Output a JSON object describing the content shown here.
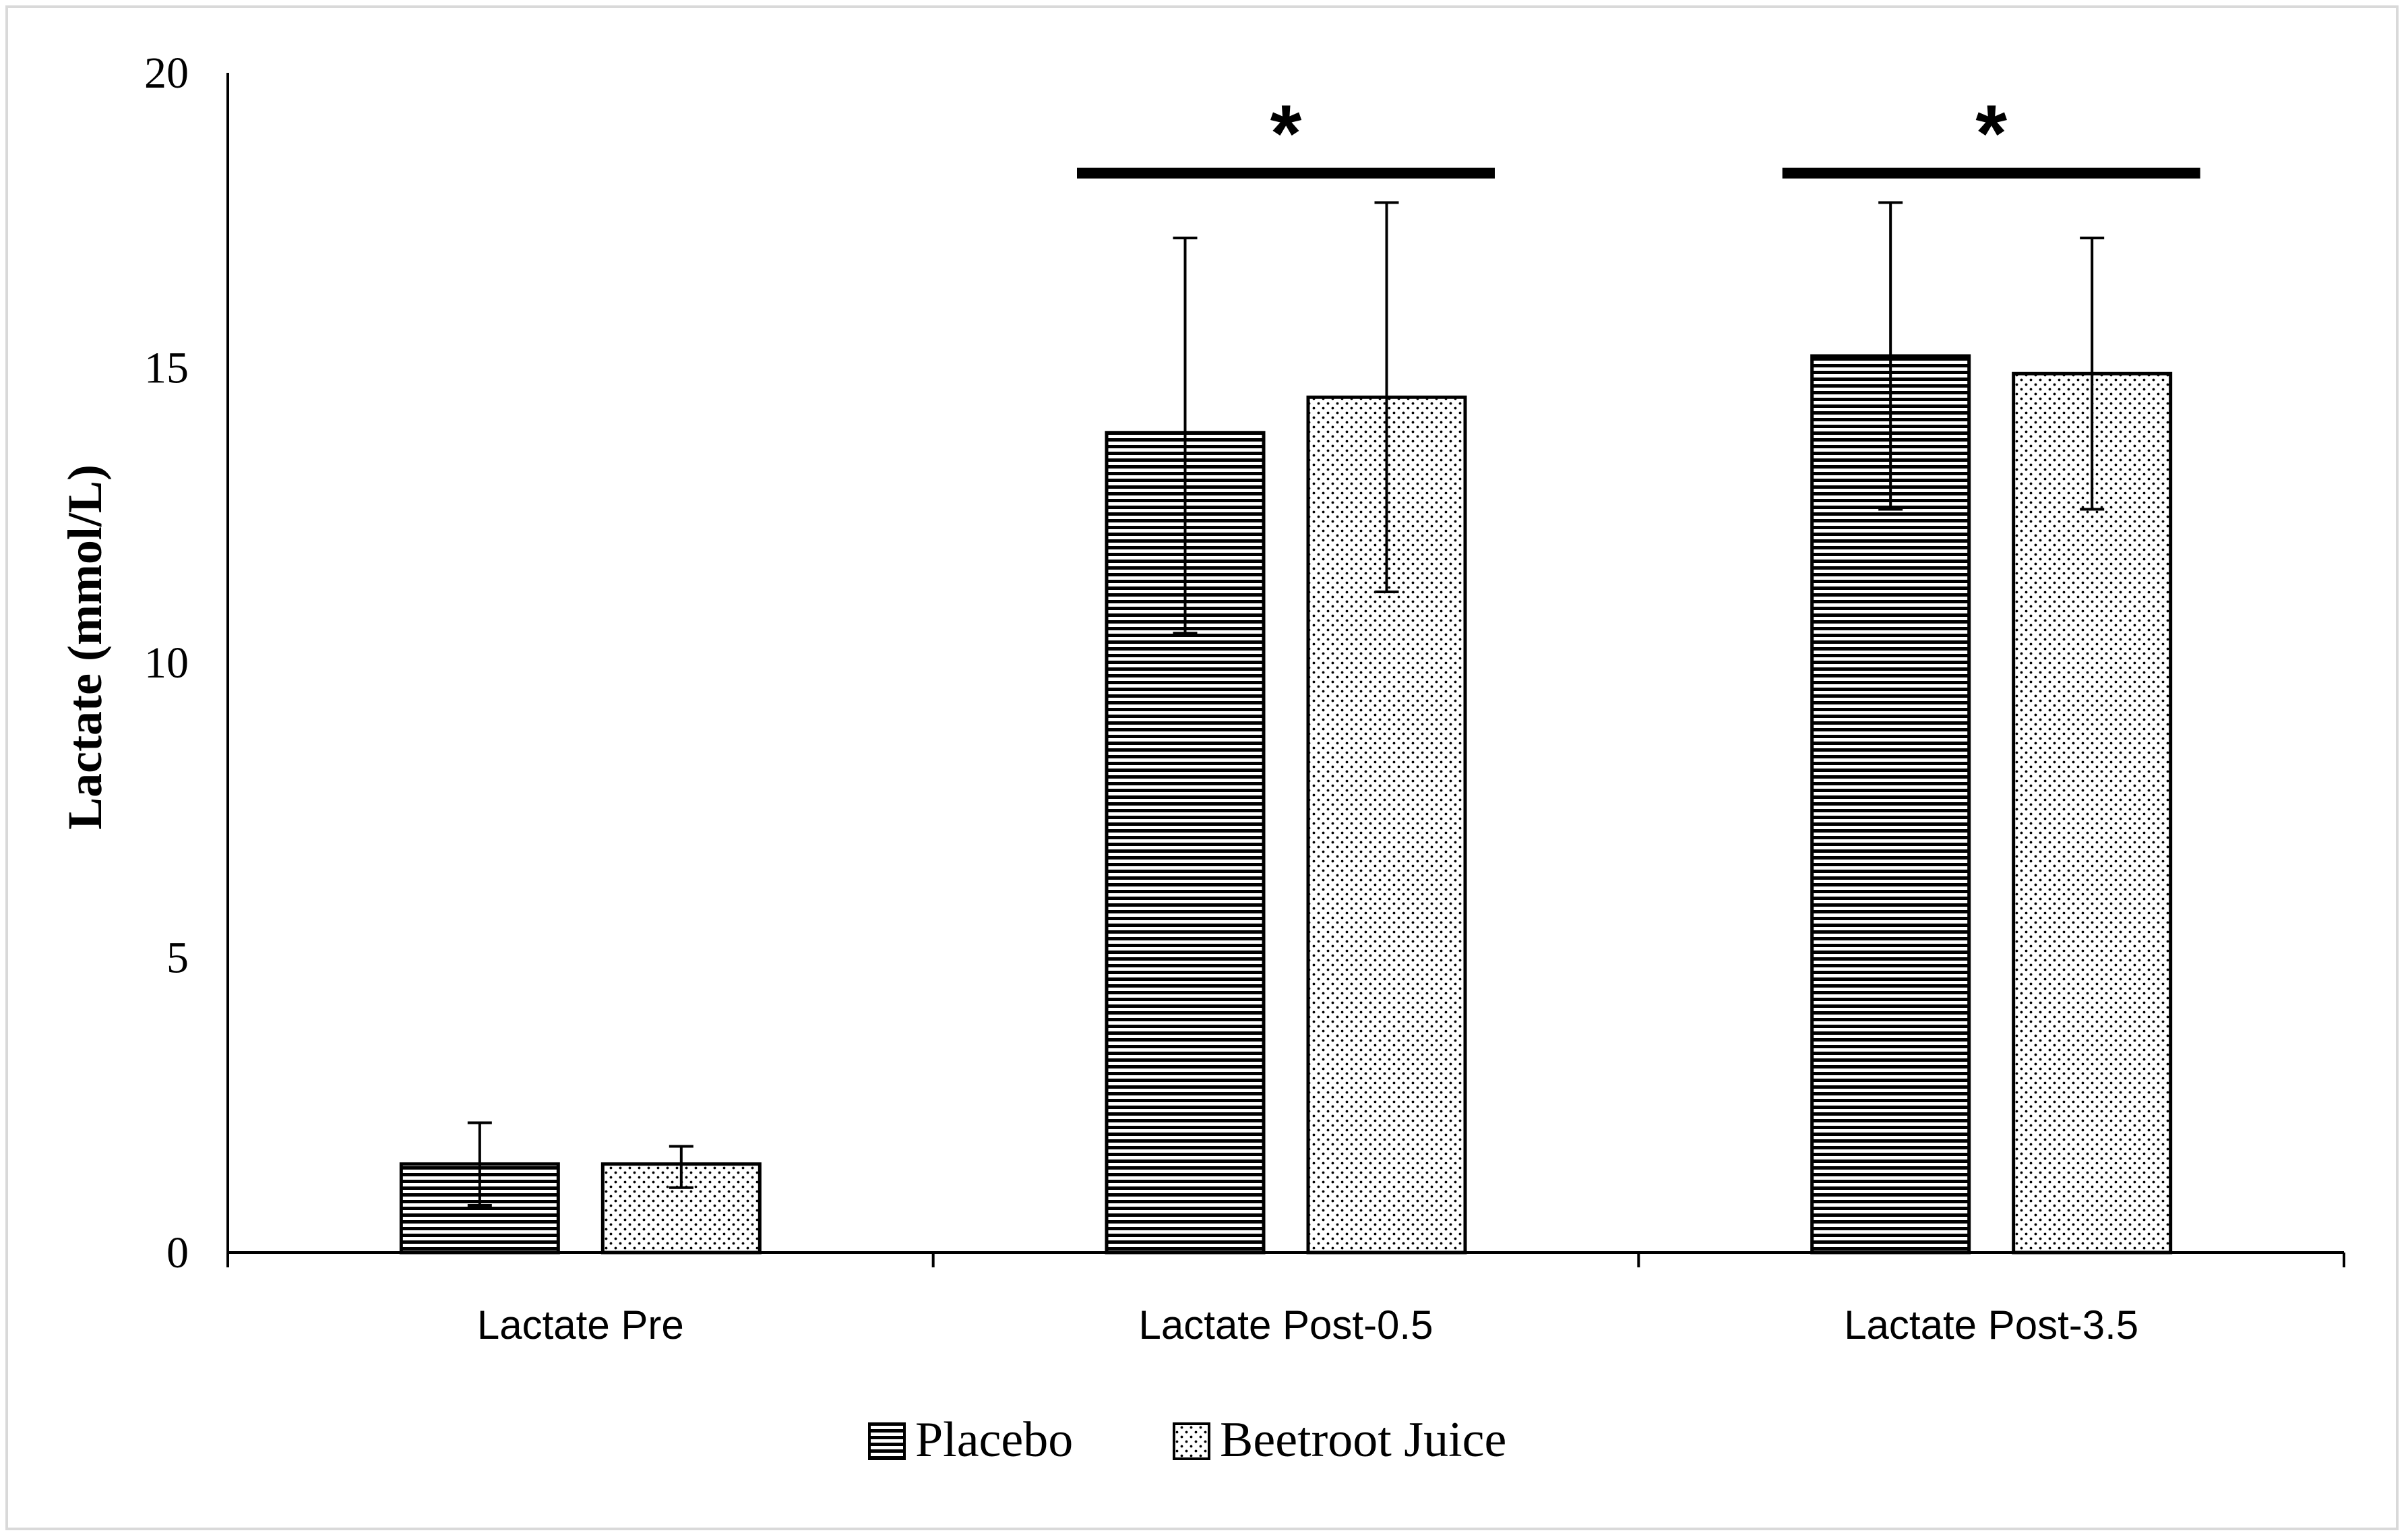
{
  "chart_data": {
    "type": "bar",
    "title": "",
    "xlabel": "",
    "ylabel": "Lactate (mmol/L)",
    "ylim": [
      0,
      20
    ],
    "yticks": [
      0,
      5,
      10,
      15,
      20
    ],
    "categories": [
      "Lactate Pre",
      "Lactate Post-0.5",
      "Lactate Post-3.5"
    ],
    "series": [
      {
        "name": "Placebo",
        "pattern": "horizontal-stripes",
        "values": [
          1.5,
          13.9,
          15.2
        ],
        "error_low": [
          0.8,
          10.5,
          12.6
        ],
        "error_high": [
          2.2,
          17.2,
          17.8
        ]
      },
      {
        "name": "Beetroot Juice",
        "pattern": "dots",
        "values": [
          1.5,
          14.5,
          14.9
        ],
        "error_low": [
          1.1,
          11.2,
          12.6
        ],
        "error_high": [
          1.8,
          17.8,
          17.2
        ]
      }
    ],
    "significance": [
      {
        "category_index": 1,
        "label": "*",
        "y": 18.3
      },
      {
        "category_index": 2,
        "label": "*",
        "y": 18.3
      }
    ],
    "legend": "bottom-center",
    "grid": false,
    "colors": {
      "bar_fill": "#ffffff",
      "stroke": "#000000",
      "frame": "#d9d9d9"
    }
  }
}
